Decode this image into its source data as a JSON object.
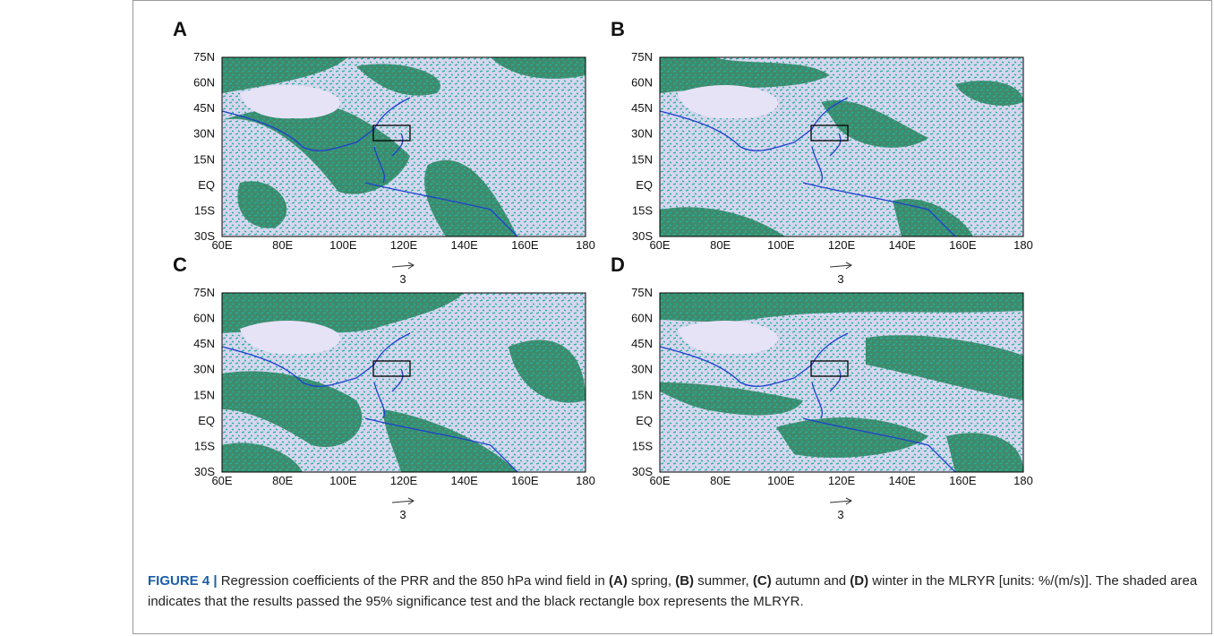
{
  "panels": [
    {
      "label": "A",
      "yticks": [
        "75N",
        "60N",
        "45N",
        "30N",
        "15N",
        "EQ",
        "15S",
        "30S"
      ],
      "xticks": [
        "60E",
        "80E",
        "100E",
        "120E",
        "140E",
        "160E",
        "180"
      ],
      "reference_vector": "3"
    },
    {
      "label": "B",
      "yticks": [
        "75N",
        "60N",
        "45N",
        "30N",
        "15N",
        "EQ",
        "15S",
        "30S"
      ],
      "xticks": [
        "60E",
        "80E",
        "100E",
        "120E",
        "140E",
        "160E",
        "180"
      ],
      "reference_vector": "3"
    },
    {
      "label": "C",
      "yticks": [
        "75N",
        "60N",
        "45N",
        "30N",
        "15N",
        "EQ",
        "15S",
        "30S"
      ],
      "xticks": [
        "60E",
        "80E",
        "100E",
        "120E",
        "140E",
        "160E",
        "180"
      ],
      "reference_vector": "3"
    },
    {
      "label": "D",
      "yticks": [
        "75N",
        "60N",
        "45N",
        "30N",
        "15N",
        "EQ",
        "15S",
        "30S"
      ],
      "xticks": [
        "60E",
        "80E",
        "100E",
        "120E",
        "140E",
        "160E",
        "180"
      ],
      "reference_vector": "3"
    }
  ],
  "caption": {
    "figure_label": "FIGURE 4 |",
    "segments": [
      " Regression coefficients of the PRR and the 850 hPa wind field in ",
      "(A)",
      " spring, ",
      "(B)",
      " summer, ",
      "(C)",
      " autumn and ",
      "(D)",
      " winter in the MLRYR [units: %/(m/s)]. The shaded area indicates that the results passed the 95% significance test and the black rectangle box represents the MLRYR."
    ]
  }
}
